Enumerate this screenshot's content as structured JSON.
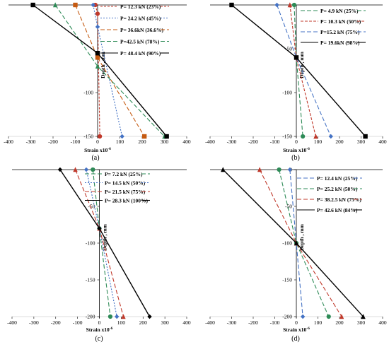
{
  "chart_data": [
    {
      "type": "line",
      "panel_label": "(a)",
      "xlabel": "Strain x10",
      "xlabel_sup": "-6",
      "ylabel": "Depth , mm",
      "xlim": [
        -400,
        400
      ],
      "ylim": [
        -150,
        0
      ],
      "xticks": [
        -400,
        -300,
        -200,
        -100,
        0,
        100,
        200,
        300,
        400
      ],
      "yticks": [
        -100,
        -150
      ],
      "legend_position": "upper-right",
      "series": [
        {
          "name": "P= 12.3 kN (23%)",
          "color": "#c0392b",
          "dash": "3,2",
          "marker": "circle",
          "points": [
            [
              -10,
              0
            ],
            [
              0,
              -10
            ],
            [
              10,
              -150
            ]
          ]
        },
        {
          "name": "P= 24.2 kN (45%)",
          "color": "#4472c4",
          "dash": "2,2",
          "marker": "diamond",
          "points": [
            [
              -20,
              0
            ],
            [
              0,
              -25
            ],
            [
              110,
              -150
            ]
          ]
        },
        {
          "name": "P= 36.6kN (36.6%)",
          "color": "#c55a11",
          "dash": "6,3",
          "marker": "square",
          "points": [
            [
              -100,
              0
            ],
            [
              0,
              -60
            ],
            [
              210,
              -150
            ]
          ]
        },
        {
          "name": "P=42.5 kN (78%)",
          "color": "#2e8b57",
          "dash": "6,3",
          "marker": "triangle",
          "points": [
            [
              -190,
              0
            ],
            [
              0,
              -70
            ],
            [
              300,
              -150
            ]
          ]
        },
        {
          "name": "P= 48.4 kN (90%)",
          "color": "#000000",
          "dash": "",
          "marker": "square",
          "points": [
            [
              -290,
              0
            ],
            [
              0,
              -55
            ],
            [
              310,
              -150
            ]
          ]
        }
      ]
    },
    {
      "type": "line",
      "panel_label": "(b)",
      "xlabel": "Strain x10",
      "xlabel_sup": "-6",
      "ylabel": "Depth , mm",
      "xlim": [
        -400,
        400
      ],
      "ylim": [
        -150,
        0
      ],
      "xticks": [
        -400,
        -300,
        -200,
        -100,
        0,
        100,
        200,
        300,
        400
      ],
      "yticks": [
        -50,
        -100,
        -150
      ],
      "legend_position": "upper-right",
      "series": [
        {
          "name": "P= 4.9 kN (25%)",
          "color": "#2e8b57",
          "dash": "6,3",
          "marker": "circle",
          "points": [
            [
              -10,
              0
            ],
            [
              0,
              -60
            ],
            [
              30,
              -150
            ]
          ]
        },
        {
          "name": "P= 10.3 kN (50%)",
          "color": "#c0392b",
          "dash": "4,2",
          "marker": "triangle",
          "points": [
            [
              -30,
              0
            ],
            [
              0,
              -60
            ],
            [
              90,
              -150
            ]
          ]
        },
        {
          "name": "P=15.2 kN (75%)",
          "color": "#4472c4",
          "dash": "6,3",
          "marker": "diamond",
          "points": [
            [
              -90,
              0
            ],
            [
              0,
              -60
            ],
            [
              160,
              -150
            ]
          ]
        },
        {
          "name": "P= 19.6kN (98%)",
          "color": "#000000",
          "dash": "",
          "marker": "square",
          "points": [
            [
              -300,
              0
            ],
            [
              0,
              -60
            ],
            [
              320,
              -150
            ]
          ]
        }
      ]
    },
    {
      "type": "line",
      "panel_label": "(c)",
      "xlabel": "Strain x10",
      "xlabel_sup": "-6",
      "ylabel": "Depth , mm",
      "xlim": [
        -400,
        400
      ],
      "ylim": [
        -200,
        0
      ],
      "xticks": [
        -400,
        -300,
        -200,
        -100,
        0,
        100,
        200,
        300,
        400
      ],
      "yticks": [
        0,
        -50,
        -100,
        -150,
        -200
      ],
      "legend_position": "upper-right",
      "series": [
        {
          "name": "P= 7.2 kN (25%)",
          "color": "#2e8b57",
          "dash": "6,3",
          "marker": "circle",
          "points": [
            [
              -30,
              0
            ],
            [
              0,
              -80
            ],
            [
              50,
              -200
            ]
          ]
        },
        {
          "name": "P= 14.5 kN (50%)",
          "color": "#4472c4",
          "dash": "2,2",
          "marker": "diamond",
          "points": [
            [
              -60,
              0
            ],
            [
              0,
              -80
            ],
            [
              80,
              -200
            ]
          ]
        },
        {
          "name": "P= 21.5 kN (75%)",
          "color": "#c0392b",
          "dash": "6,3",
          "marker": "triangle",
          "points": [
            [
              -110,
              0
            ],
            [
              0,
              -80
            ],
            [
              110,
              -200
            ]
          ]
        },
        {
          "name": "P= 28.3 kN (100%)",
          "color": "#000000",
          "dash": "",
          "marker": "diamond",
          "points": [
            [
              -180,
              0
            ],
            [
              0,
              -80
            ],
            [
              230,
              -200
            ]
          ]
        }
      ]
    },
    {
      "type": "line",
      "panel_label": "(d)",
      "xlabel": "Strain x10",
      "xlabel_sup": "-6",
      "ylabel": "Depth , mm",
      "xlim": [
        -400,
        400
      ],
      "ylim": [
        -200,
        0
      ],
      "xticks": [
        -400,
        -300,
        -200,
        -100,
        0,
        100,
        200,
        300,
        400
      ],
      "yticks": [
        0,
        -50,
        -100,
        -150,
        -200
      ],
      "legend_position": "upper-right",
      "series": [
        {
          "name": "P= 12.4 kN (25%)",
          "color": "#4472c4",
          "dash": "6,3",
          "marker": "diamond",
          "points": [
            [
              -30,
              0
            ],
            [
              0,
              -100
            ],
            [
              30,
              -200
            ]
          ]
        },
        {
          "name": "P= 25.2 kN (50%)",
          "color": "#2e8b57",
          "dash": "6,3",
          "marker": "circle",
          "points": [
            [
              -80,
              0
            ],
            [
              0,
              -100
            ],
            [
              150,
              -200
            ]
          ]
        },
        {
          "name": "P= 38.2.5 kN (75%)",
          "color": "#c0392b",
          "dash": "6,3",
          "marker": "triangle",
          "points": [
            [
              -170,
              0
            ],
            [
              0,
              -100
            ],
            [
              210,
              -200
            ]
          ]
        },
        {
          "name": "P= 42.6 kN (84%)",
          "color": "#000000",
          "dash": "",
          "marker": "triangle",
          "points": [
            [
              -340,
              0
            ],
            [
              0,
              -100
            ],
            [
              310,
              -200
            ]
          ]
        }
      ]
    }
  ]
}
